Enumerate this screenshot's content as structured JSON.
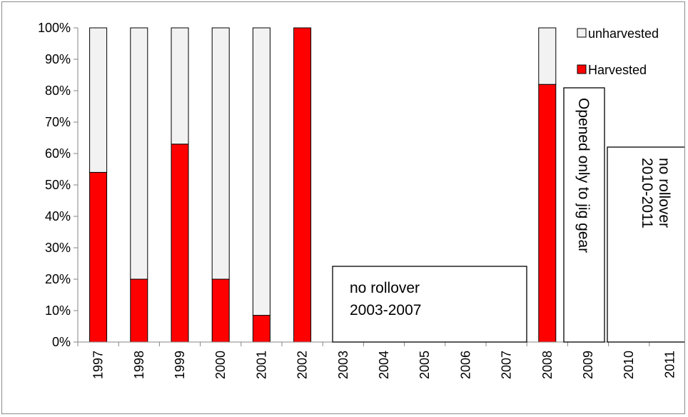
{
  "chart_data": {
    "type": "bar",
    "stacked": true,
    "categories": [
      "1997",
      "1998",
      "1999",
      "2000",
      "2001",
      "2002",
      "2003",
      "2004",
      "2005",
      "2006",
      "2007",
      "2008",
      "2009",
      "2010",
      "2011"
    ],
    "series": [
      {
        "name": "Harvested",
        "color": "#ff0000",
        "values": [
          54,
          20,
          63,
          20,
          8.5,
          100,
          null,
          null,
          null,
          null,
          null,
          82,
          null,
          null,
          null
        ]
      },
      {
        "name": "unharvested",
        "color": "#f2f2f2",
        "values": [
          46,
          80,
          37,
          80,
          91.5,
          0,
          null,
          null,
          null,
          null,
          null,
          18,
          null,
          null,
          null
        ]
      }
    ],
    "ylim": [
      0,
      100
    ],
    "y_ticks": [
      "0%",
      "10%",
      "20%",
      "30%",
      "40%",
      "50%",
      "60%",
      "70%",
      "80%",
      "90%",
      "100%"
    ],
    "legend_position": "top-right",
    "legend_order": [
      "unharvested",
      "Harvested"
    ],
    "grid": false,
    "annotations": [
      {
        "lines": [
          "no rollover",
          "2003-2007"
        ],
        "orientation": "horizontal"
      },
      {
        "lines": [
          "Opened only to jig gear"
        ],
        "orientation": "vertical"
      },
      {
        "lines": [
          "no rollover",
          "2010-2011"
        ],
        "orientation": "vertical"
      }
    ]
  }
}
